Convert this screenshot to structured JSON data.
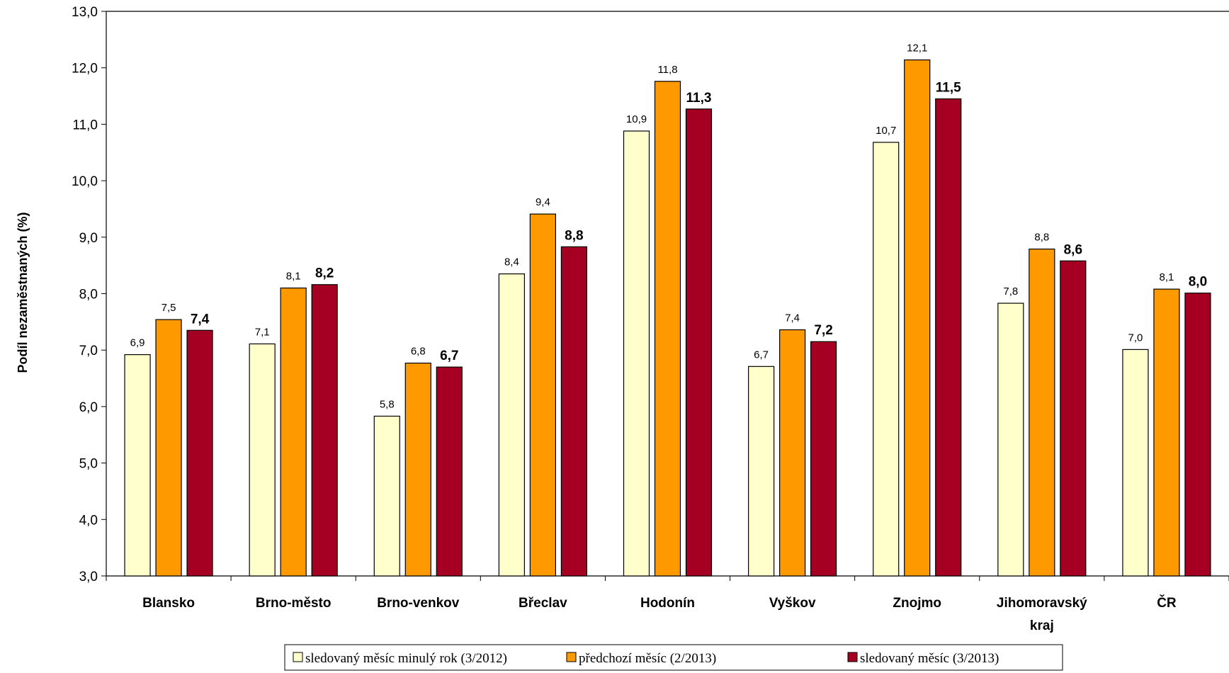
{
  "chart_data": {
    "type": "bar",
    "title": "",
    "xlabel": "",
    "ylabel": "Podíl nezaměstnaných (%)",
    "ylim": [
      3.0,
      13.0
    ],
    "yticks": [
      "3,0",
      "4,0",
      "5,0",
      "6,0",
      "7,0",
      "8,0",
      "9,0",
      "10,0",
      "11,0",
      "12,0",
      "13,0"
    ],
    "grid": false,
    "legend_position": "bottom",
    "categories": [
      [
        "Blansko"
      ],
      [
        "Brno-město"
      ],
      [
        "Brno-venkov"
      ],
      [
        "Břeclav"
      ],
      [
        "Hodonín"
      ],
      [
        "Vyškov"
      ],
      [
        "Znojmo"
      ],
      [
        "Jihomoravský",
        "kraj"
      ],
      [
        "ČR"
      ]
    ],
    "series": [
      {
        "name": "sledovaný měsíc minulý rok (3/2012)",
        "color": "#ffffcc",
        "values": [
          6.92,
          7.11,
          5.83,
          8.35,
          10.88,
          6.71,
          10.68,
          7.83,
          7.01
        ],
        "labels": [
          "6,9",
          "7,1",
          "5,8",
          "8,4",
          "10,9",
          "6,7",
          "10,7",
          "7,8",
          "7,0"
        ],
        "label_bold": false
      },
      {
        "name": "předchozí měsíc (2/2013)",
        "color": "#ff9900",
        "values": [
          7.54,
          8.1,
          6.77,
          9.41,
          11.76,
          7.36,
          12.14,
          8.79,
          8.08
        ],
        "labels": [
          "7,5",
          "8,1",
          "6,8",
          "9,4",
          "11,8",
          "7,4",
          "12,1",
          "8,8",
          "8,1"
        ],
        "label_bold": false
      },
      {
        "name": "sledovaný měsíc (3/2013)",
        "color": "#a50021",
        "values": [
          7.35,
          8.16,
          6.7,
          8.83,
          11.27,
          7.15,
          11.45,
          8.58,
          8.01
        ],
        "labels": [
          "7,4",
          "8,2",
          "6,7",
          "8,8",
          "11,3",
          "7,2",
          "11,5",
          "8,6",
          "8,0"
        ],
        "label_bold": true
      }
    ]
  }
}
